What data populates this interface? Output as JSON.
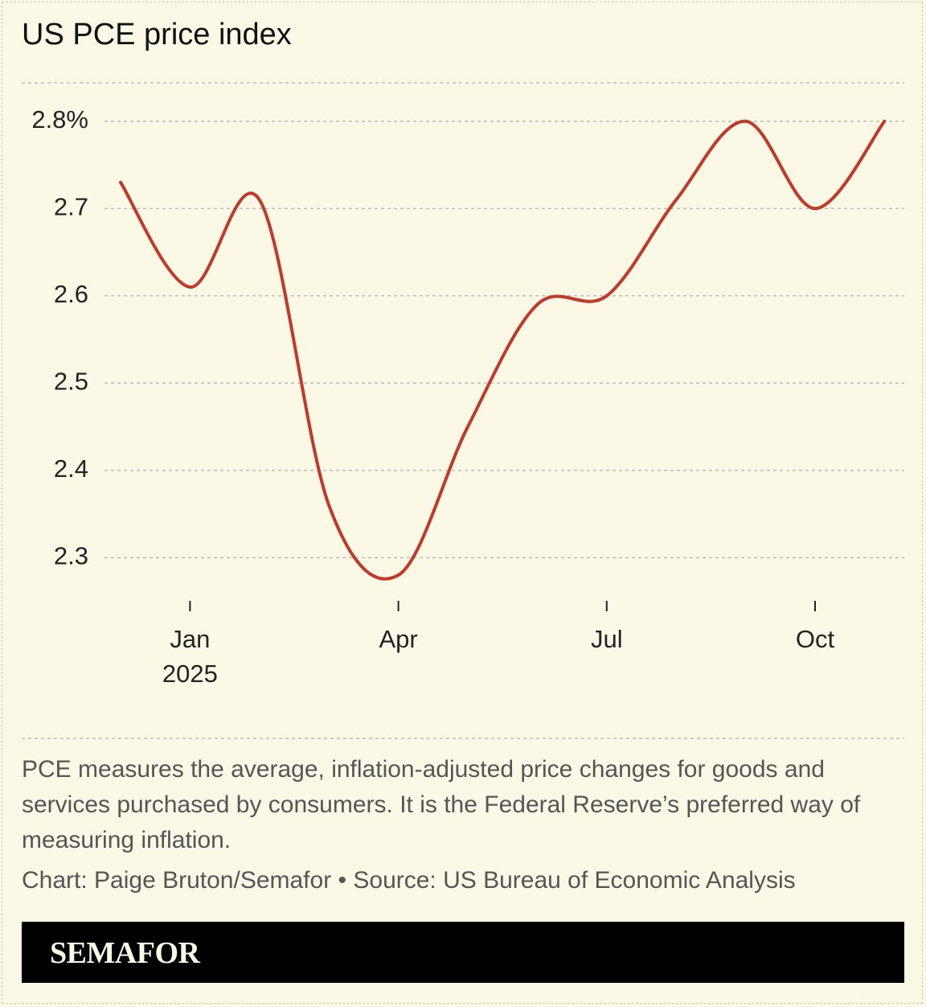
{
  "chart_data": {
    "type": "line",
    "title": "US PCE price index",
    "categories": [
      null,
      "Jan",
      null,
      null,
      "Apr",
      null,
      null,
      "Jul",
      null,
      null,
      "Oct",
      null
    ],
    "year_label": "2025",
    "series": [
      {
        "name": "PCE price index",
        "color": "#c0392b",
        "values": [
          2.73,
          2.61,
          2.71,
          2.36,
          2.28,
          2.45,
          2.59,
          2.6,
          2.71,
          2.8,
          2.7,
          2.8
        ]
      }
    ],
    "ylim": [
      2.257,
      2.844
    ],
    "yticks": [
      2.3,
      2.4,
      2.5,
      2.6,
      2.7,
      {
        "value": 2.8,
        "label": "2.8%"
      }
    ],
    "grid": true,
    "note": "PCE measures the average, inflation-adjusted price changes for goods and services purchased by consumers. It is the Federal Reserve’s preferred way of measuring inflation.",
    "credit": "Chart: Paige Bruton/Semafor • Source: US Bureau of Economic Analysis",
    "logo": "SEMAFOR"
  }
}
